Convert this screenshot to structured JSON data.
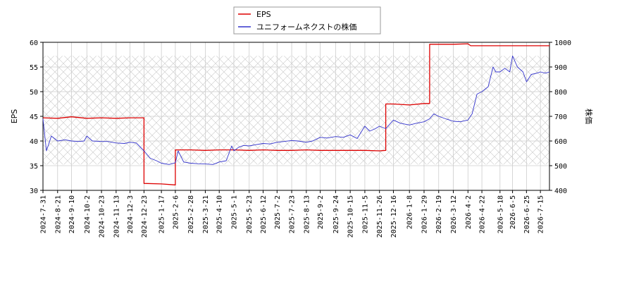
{
  "chart_data": {
    "type": "line",
    "ylabel_left": "EPS",
    "ylabel_right": "株価",
    "ylim_left": [
      30,
      60
    ],
    "ylim_right": [
      400,
      1000
    ],
    "yticks_left": [
      30,
      35,
      40,
      45,
      50,
      55,
      60
    ],
    "yticks_right": [
      400,
      500,
      600,
      700,
      800,
      900,
      1000
    ],
    "x_tick_labels": [
      "2024-7-31",
      "2024-8-21",
      "2024-9-10",
      "2024-10-2",
      "2024-10-23",
      "2024-11-13",
      "2024-12-3",
      "2024-12-23",
      "2025-1-17",
      "2025-2-6",
      "2025-2-28",
      "2025-3-21",
      "2025-4-10",
      "2025-5-1",
      "2025-5-23",
      "2025-6-12",
      "2025-7-2",
      "2025-7-23",
      "2025-8-13",
      "2025-9-2",
      "2025-9-24",
      "2025-10-15",
      "2025-11-5",
      "2025-11-26",
      "2025-12-16",
      "2026-1-8",
      "2026-1-29",
      "2026-2-19",
      "2026-3-12",
      "2026-4-2",
      "2026-4-22",
      "2026-5-18",
      "2026-6-5",
      "2026-6-25",
      "2026-7-15"
    ],
    "grid": true,
    "legend_position": "top-center",
    "series": [
      {
        "name": "EPS",
        "axis": "left",
        "color": "#dd0000",
        "points": [
          [
            "2024-7-31",
            44.7
          ],
          [
            "2024-8-21",
            44.6
          ],
          [
            "2024-9-10",
            44.9
          ],
          [
            "2024-10-2",
            44.6
          ],
          [
            "2024-10-23",
            44.7
          ],
          [
            "2024-11-13",
            44.6
          ],
          [
            "2024-12-3",
            44.7
          ],
          [
            "2024-12-23",
            44.7
          ],
          [
            "2024-12-23",
            31.4
          ],
          [
            "2025-1-17",
            31.3
          ],
          [
            "2025-2-6",
            31.1
          ],
          [
            "2025-2-6",
            38.2
          ],
          [
            "2025-2-28",
            38.2
          ],
          [
            "2025-3-21",
            38.1
          ],
          [
            "2025-4-10",
            38.2
          ],
          [
            "2025-5-1",
            38.2
          ],
          [
            "2025-5-23",
            38.1
          ],
          [
            "2025-6-12",
            38.2
          ],
          [
            "2025-7-2",
            38.1
          ],
          [
            "2025-7-23",
            38.1
          ],
          [
            "2025-8-13",
            38.2
          ],
          [
            "2025-9-2",
            38.1
          ],
          [
            "2025-9-24",
            38.1
          ],
          [
            "2025-10-15",
            38.1
          ],
          [
            "2025-11-5",
            38.1
          ],
          [
            "2025-11-26",
            38.0
          ],
          [
            "2025-12-5",
            38.1
          ],
          [
            "2025-12-5",
            47.5
          ],
          [
            "2025-12-16",
            47.5
          ],
          [
            "2026-1-8",
            47.3
          ],
          [
            "2026-1-29",
            47.6
          ],
          [
            "2026-2-6",
            47.6
          ],
          [
            "2026-2-6",
            59.6
          ],
          [
            "2026-2-19",
            59.6
          ],
          [
            "2026-3-12",
            59.6
          ],
          [
            "2026-4-2",
            59.7
          ],
          [
            "2026-4-6",
            59.3
          ],
          [
            "2026-4-22",
            59.3
          ],
          [
            "2026-5-18",
            59.3
          ],
          [
            "2026-6-5",
            59.3
          ],
          [
            "2026-6-25",
            59.3
          ],
          [
            "2026-7-15",
            59.3
          ],
          [
            "2026-7-28",
            59.3
          ]
        ]
      },
      {
        "name": "ユニフォームネクストの株価",
        "axis": "right",
        "color": "#3333cc",
        "points": [
          [
            "2024-7-31",
            690
          ],
          [
            "2024-8-5",
            560
          ],
          [
            "2024-8-12",
            620
          ],
          [
            "2024-8-21",
            600
          ],
          [
            "2024-9-1",
            605
          ],
          [
            "2024-9-10",
            600
          ],
          [
            "2024-9-20",
            598
          ],
          [
            "2024-9-28",
            600
          ],
          [
            "2024-10-2",
            620
          ],
          [
            "2024-10-10",
            600
          ],
          [
            "2024-10-23",
            598
          ],
          [
            "2024-11-1",
            598
          ],
          [
            "2024-11-13",
            592
          ],
          [
            "2024-11-25",
            590
          ],
          [
            "2024-12-3",
            595
          ],
          [
            "2024-12-12",
            592
          ],
          [
            "2024-12-23",
            560
          ],
          [
            "2025-1-1",
            530
          ],
          [
            "2025-1-10",
            520
          ],
          [
            "2025-1-17",
            510
          ],
          [
            "2025-1-28",
            505
          ],
          [
            "2025-2-6",
            512
          ],
          [
            "2025-2-10",
            560
          ],
          [
            "2025-2-18",
            515
          ],
          [
            "2025-2-28",
            510
          ],
          [
            "2025-3-10",
            508
          ],
          [
            "2025-3-21",
            507
          ],
          [
            "2025-4-1",
            505
          ],
          [
            "2025-4-10",
            515
          ],
          [
            "2025-4-20",
            520
          ],
          [
            "2025-4-28",
            580
          ],
          [
            "2025-5-1",
            560
          ],
          [
            "2025-5-8",
            575
          ],
          [
            "2025-5-15",
            582
          ],
          [
            "2025-5-23",
            580
          ],
          [
            "2025-6-1",
            585
          ],
          [
            "2025-6-12",
            590
          ],
          [
            "2025-6-22",
            588
          ],
          [
            "2025-7-2",
            595
          ],
          [
            "2025-7-12",
            598
          ],
          [
            "2025-7-23",
            602
          ],
          [
            "2025-8-1",
            600
          ],
          [
            "2025-8-13",
            595
          ],
          [
            "2025-8-22",
            600
          ],
          [
            "2025-9-2",
            615
          ],
          [
            "2025-9-12",
            612
          ],
          [
            "2025-9-24",
            618
          ],
          [
            "2025-10-5",
            615
          ],
          [
            "2025-10-15",
            625
          ],
          [
            "2025-10-25",
            610
          ],
          [
            "2025-11-5",
            660
          ],
          [
            "2025-11-12",
            640
          ],
          [
            "2025-11-20",
            650
          ],
          [
            "2025-11-26",
            660
          ],
          [
            "2025-12-5",
            650
          ],
          [
            "2025-12-16",
            685
          ],
          [
            "2025-12-26",
            672
          ],
          [
            "2026-1-8",
            665
          ],
          [
            "2026-1-18",
            672
          ],
          [
            "2026-1-29",
            678
          ],
          [
            "2026-2-6",
            690
          ],
          [
            "2026-2-12",
            710
          ],
          [
            "2026-2-19",
            700
          ],
          [
            "2026-3-1",
            690
          ],
          [
            "2026-3-12",
            680
          ],
          [
            "2026-3-22",
            678
          ],
          [
            "2026-4-2",
            685
          ],
          [
            "2026-4-8",
            710
          ],
          [
            "2026-4-15",
            790
          ],
          [
            "2026-4-22",
            800
          ],
          [
            "2026-5-1",
            820
          ],
          [
            "2026-5-8",
            900
          ],
          [
            "2026-5-12",
            880
          ],
          [
            "2026-5-18",
            880
          ],
          [
            "2026-5-25",
            895
          ],
          [
            "2026-6-1",
            880
          ],
          [
            "2026-6-5",
            945
          ],
          [
            "2026-6-12",
            900
          ],
          [
            "2026-6-20",
            880
          ],
          [
            "2026-6-25",
            840
          ],
          [
            "2026-7-2",
            870
          ],
          [
            "2026-7-10",
            875
          ],
          [
            "2026-7-15",
            880
          ],
          [
            "2026-7-22",
            875
          ],
          [
            "2026-7-28",
            880
          ]
        ]
      }
    ]
  }
}
